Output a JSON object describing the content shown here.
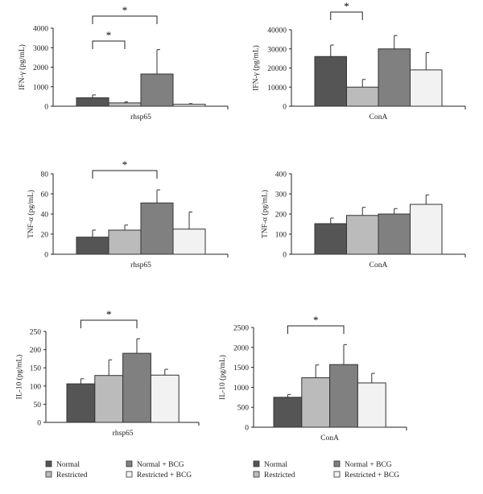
{
  "groups": [
    "Normal",
    "Restricted",
    "Normal + BCG",
    "Restricted + BCG"
  ],
  "colors": [
    "#555555",
    "#bbbbbb",
    "#808080",
    "#f2f2f2"
  ],
  "chart_data": [
    {
      "type": "bar",
      "ylabel": "IFN-γ (pg/mL)",
      "category": "rhsp65",
      "ylim": [
        0,
        4000
      ],
      "yticks": [
        0,
        1000,
        2000,
        3000,
        4000
      ],
      "values": [
        430,
        170,
        1650,
        100
      ],
      "errors": [
        150,
        50,
        1250,
        30
      ],
      "significance": [
        {
          "pair": [
            0,
            2
          ],
          "label": "*"
        },
        {
          "pair": [
            0,
            1
          ],
          "label": "*"
        }
      ]
    },
    {
      "type": "bar",
      "ylabel": "IFN-γ (pg/mL)",
      "category": "ConA",
      "ylim": [
        0,
        40000
      ],
      "yticks": [
        0,
        10000,
        20000,
        30000,
        40000
      ],
      "values": [
        26000,
        10000,
        30000,
        19000
      ],
      "errors": [
        6000,
        4000,
        7000,
        9000
      ],
      "significance": [
        {
          "pair": [
            0,
            1
          ],
          "label": "*"
        }
      ]
    },
    {
      "type": "bar",
      "ylabel": "TNF-α (pg/mL)",
      "category": "rhsp65",
      "ylim": [
        0,
        80
      ],
      "yticks": [
        0,
        20,
        40,
        60,
        80
      ],
      "values": [
        17,
        24,
        51,
        25
      ],
      "errors": [
        7,
        5,
        13,
        17
      ],
      "significance": [
        {
          "pair": [
            0,
            2
          ],
          "label": "*"
        }
      ]
    },
    {
      "type": "bar",
      "ylabel": "TNF-α (pg/mL)",
      "category": "ConA",
      "ylim": [
        0,
        400
      ],
      "yticks": [
        0,
        100,
        200,
        300,
        400
      ],
      "values": [
        152,
        193,
        200,
        248
      ],
      "errors": [
        28,
        40,
        27,
        47
      ],
      "significance": []
    },
    {
      "type": "bar",
      "ylabel": "IL-10 (pg/mL)",
      "category": "rhsp65",
      "ylim": [
        0,
        250
      ],
      "yticks": [
        0,
        50,
        100,
        150,
        200,
        250
      ],
      "values": [
        106,
        129,
        190,
        130
      ],
      "errors": [
        14,
        43,
        40,
        16
      ],
      "significance": [
        {
          "pair": [
            0,
            2
          ],
          "label": "*"
        }
      ]
    },
    {
      "type": "bar",
      "ylabel": "IL-10 (pg/mL)",
      "category": "ConA",
      "ylim": [
        0,
        2500
      ],
      "yticks": [
        0,
        500,
        1000,
        1500,
        2000,
        2500
      ],
      "values": [
        750,
        1240,
        1570,
        1110
      ],
      "errors": [
        70,
        320,
        500,
        240
      ],
      "significance": [
        {
          "pair": [
            0,
            2
          ],
          "label": "*"
        }
      ]
    }
  ]
}
